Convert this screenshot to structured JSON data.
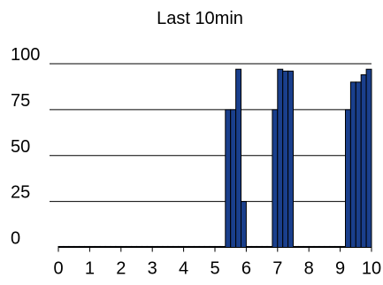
{
  "chart_data": {
    "type": "bar",
    "title": "Last 10min",
    "xlabel": "",
    "ylabel": "",
    "xlim": [
      0,
      10
    ],
    "ylim": [
      0,
      100
    ],
    "grid": "horizontal",
    "y_ticks": [
      0,
      25,
      50,
      75,
      100
    ],
    "x_ticks": [
      0,
      1,
      2,
      3,
      4,
      5,
      6,
      7,
      8,
      9,
      10
    ],
    "bar_color": "#1a3f8c",
    "bar_width": 0.1667,
    "series": [
      {
        "x": [
          0.0,
          0.1667,
          0.3333,
          0.5,
          0.6667,
          0.8333,
          1.0,
          1.1667,
          1.3333,
          1.5,
          1.6667,
          1.8333,
          2.0,
          2.1667,
          2.3333,
          2.5,
          2.6667,
          2.8333,
          3.0,
          3.1667,
          3.3333,
          3.5,
          3.6667,
          3.8333,
          4.0,
          4.1667,
          4.3333,
          4.5,
          4.6667,
          4.8333,
          5.0,
          5.1667,
          5.3333,
          5.5,
          5.6667,
          5.8333,
          6.0,
          6.1667,
          6.3333,
          6.5,
          6.6667,
          6.8333,
          7.0,
          7.1667,
          7.3333,
          7.5,
          7.6667,
          7.8333,
          8.0,
          8.1667,
          8.3333,
          8.5,
          8.6667,
          8.8333,
          9.0,
          9.1667,
          9.3333,
          9.5,
          9.6667,
          9.8333
        ],
        "values": [
          0.5,
          0.5,
          0.5,
          0.5,
          0.5,
          0.5,
          0.5,
          0.5,
          0.5,
          0.5,
          0.5,
          0.5,
          0.5,
          0.5,
          0.5,
          0.5,
          0.5,
          0.5,
          0.5,
          0.5,
          0.5,
          0.5,
          0.5,
          0.5,
          0.5,
          0.5,
          0.5,
          0.5,
          0.5,
          0.5,
          0.5,
          0.5,
          75,
          75,
          97,
          25,
          0.5,
          0.5,
          0.5,
          0.5,
          0.5,
          75,
          97,
          96,
          96,
          0.5,
          0.5,
          0.5,
          0.5,
          0.5,
          0.5,
          0.5,
          0.5,
          0.5,
          0.5,
          75,
          90,
          90,
          94,
          97
        ]
      }
    ]
  }
}
